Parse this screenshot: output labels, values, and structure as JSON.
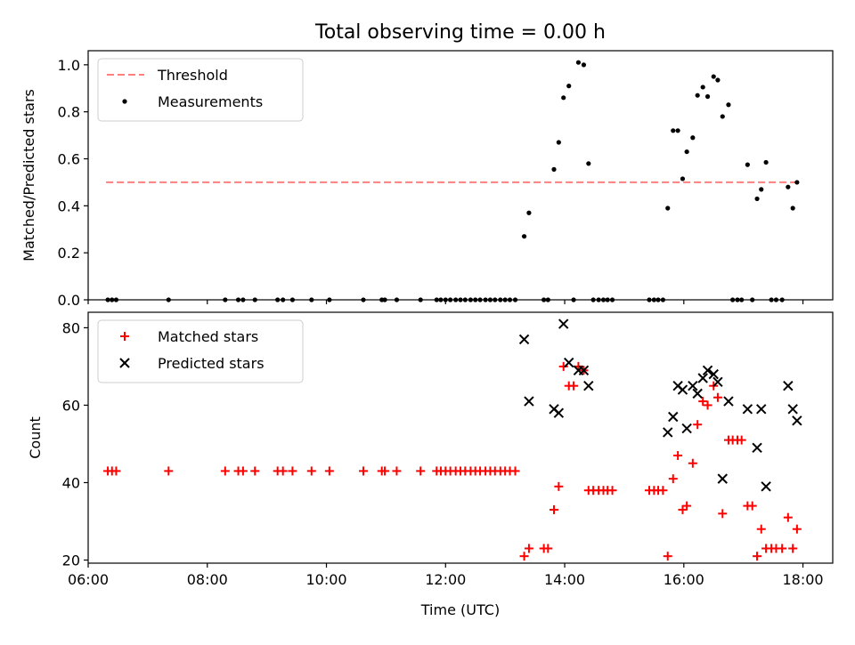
{
  "title": "Total observing time = 0.00 h",
  "chart_data": [
    {
      "type": "scatter",
      "ylabel": "Matched/Predicted stars",
      "xlabel": "",
      "xlim": [
        6.0,
        18.5
      ],
      "ylim": [
        0.0,
        1.06
      ],
      "yticks": [
        0.0,
        0.2,
        0.4,
        0.6,
        0.8,
        1.0
      ],
      "ytick_labels": [
        "0.0",
        "0.2",
        "0.4",
        "0.6",
        "0.8",
        "1.0"
      ],
      "xticks": [
        6,
        8,
        10,
        12,
        14,
        16,
        18
      ],
      "threshold": {
        "name": "Threshold",
        "y": 0.5,
        "x_range": [
          6.3,
          17.9
        ],
        "color": "#ff7f7f"
      },
      "legend_position": "upper left",
      "series": [
        {
          "name": "Measurements",
          "marker": "dot",
          "color": "#000000",
          "points": [
            [
              6.33,
              0
            ],
            [
              6.4,
              0
            ],
            [
              6.47,
              0
            ],
            [
              7.35,
              0
            ],
            [
              8.3,
              0
            ],
            [
              8.52,
              0
            ],
            [
              8.6,
              0
            ],
            [
              8.8,
              0
            ],
            [
              9.18,
              0
            ],
            [
              9.27,
              0
            ],
            [
              9.43,
              0
            ],
            [
              9.75,
              0
            ],
            [
              10.05,
              0
            ],
            [
              10.62,
              0
            ],
            [
              10.93,
              0
            ],
            [
              10.98,
              0
            ],
            [
              11.18,
              0
            ],
            [
              11.58,
              0
            ],
            [
              11.85,
              0
            ],
            [
              11.92,
              0
            ],
            [
              12.0,
              0
            ],
            [
              12.08,
              0
            ],
            [
              12.17,
              0
            ],
            [
              12.25,
              0
            ],
            [
              12.33,
              0
            ],
            [
              12.42,
              0
            ],
            [
              12.5,
              0
            ],
            [
              12.58,
              0
            ],
            [
              12.67,
              0
            ],
            [
              12.75,
              0
            ],
            [
              12.83,
              0
            ],
            [
              12.92,
              0
            ],
            [
              13.0,
              0
            ],
            [
              13.08,
              0
            ],
            [
              13.17,
              0
            ],
            [
              13.32,
              0.27
            ],
            [
              13.4,
              0.37
            ],
            [
              13.65,
              0
            ],
            [
              13.72,
              0
            ],
            [
              13.82,
              0.555
            ],
            [
              13.9,
              0.67
            ],
            [
              13.98,
              0.86
            ],
            [
              14.07,
              0.91
            ],
            [
              14.15,
              0
            ],
            [
              14.23,
              1.01
            ],
            [
              14.32,
              1.0
            ],
            [
              14.4,
              0.58
            ],
            [
              14.48,
              0
            ],
            [
              14.57,
              0
            ],
            [
              14.65,
              0
            ],
            [
              14.72,
              0
            ],
            [
              14.8,
              0
            ],
            [
              15.42,
              0
            ],
            [
              15.5,
              0
            ],
            [
              15.57,
              0
            ],
            [
              15.65,
              0
            ],
            [
              15.73,
              0.39
            ],
            [
              15.82,
              0.72
            ],
            [
              15.9,
              0.72
            ],
            [
              15.98,
              0.515
            ],
            [
              16.05,
              0.63
            ],
            [
              16.15,
              0.69
            ],
            [
              16.23,
              0.87
            ],
            [
              16.32,
              0.905
            ],
            [
              16.4,
              0.865
            ],
            [
              16.5,
              0.95
            ],
            [
              16.57,
              0.935
            ],
            [
              16.65,
              0.78
            ],
            [
              16.75,
              0.83
            ],
            [
              16.82,
              0
            ],
            [
              16.9,
              0
            ],
            [
              16.97,
              0
            ],
            [
              17.07,
              0.575
            ],
            [
              17.15,
              0
            ],
            [
              17.23,
              0.43
            ],
            [
              17.3,
              0.47
            ],
            [
              17.38,
              0.585
            ],
            [
              17.47,
              0
            ],
            [
              17.55,
              0
            ],
            [
              17.65,
              0
            ],
            [
              17.75,
              0.48
            ],
            [
              17.83,
              0.39
            ],
            [
              17.9,
              0.5
            ]
          ]
        }
      ]
    },
    {
      "type": "scatter",
      "xlabel": "Time (UTC)",
      "ylabel": "Count",
      "xlim": [
        6.0,
        18.5
      ],
      "ylim": [
        19.2,
        84.0
      ],
      "yticks": [
        20,
        40,
        60,
        80
      ],
      "ytick_labels": [
        "20",
        "40",
        "60",
        "80"
      ],
      "xticks": [
        6,
        8,
        10,
        12,
        14,
        16,
        18
      ],
      "xtick_labels": [
        "06:00",
        "08:00",
        "10:00",
        "12:00",
        "14:00",
        "16:00",
        "18:00"
      ],
      "legend_position": "upper left",
      "series": [
        {
          "name": "Matched stars",
          "marker": "plus",
          "color": "#ff0000",
          "points": [
            [
              6.33,
              43
            ],
            [
              6.4,
              43
            ],
            [
              6.47,
              43
            ],
            [
              7.35,
              43
            ],
            [
              8.3,
              43
            ],
            [
              8.52,
              43
            ],
            [
              8.6,
              43
            ],
            [
              8.8,
              43
            ],
            [
              9.18,
              43
            ],
            [
              9.27,
              43
            ],
            [
              9.43,
              43
            ],
            [
              9.75,
              43
            ],
            [
              10.05,
              43
            ],
            [
              10.62,
              43
            ],
            [
              10.93,
              43
            ],
            [
              10.98,
              43
            ],
            [
              11.18,
              43
            ],
            [
              11.58,
              43
            ],
            [
              11.85,
              43
            ],
            [
              11.92,
              43
            ],
            [
              12.0,
              43
            ],
            [
              12.08,
              43
            ],
            [
              12.17,
              43
            ],
            [
              12.25,
              43
            ],
            [
              12.33,
              43
            ],
            [
              12.42,
              43
            ],
            [
              12.5,
              43
            ],
            [
              12.58,
              43
            ],
            [
              12.67,
              43
            ],
            [
              12.75,
              43
            ],
            [
              12.83,
              43
            ],
            [
              12.92,
              43
            ],
            [
              13.0,
              43
            ],
            [
              13.08,
              43
            ],
            [
              13.17,
              43
            ],
            [
              13.32,
              21
            ],
            [
              13.4,
              23
            ],
            [
              13.65,
              23
            ],
            [
              13.72,
              23
            ],
            [
              13.82,
              33
            ],
            [
              13.9,
              39
            ],
            [
              13.98,
              70
            ],
            [
              14.07,
              65
            ],
            [
              14.15,
              65
            ],
            [
              14.23,
              70
            ],
            [
              14.32,
              69
            ],
            [
              14.4,
              38
            ],
            [
              14.48,
              38
            ],
            [
              14.57,
              38
            ],
            [
              14.65,
              38
            ],
            [
              14.72,
              38
            ],
            [
              14.8,
              38
            ],
            [
              15.42,
              38
            ],
            [
              15.5,
              38
            ],
            [
              15.57,
              38
            ],
            [
              15.65,
              38
            ],
            [
              15.73,
              21
            ],
            [
              15.82,
              41
            ],
            [
              15.9,
              47
            ],
            [
              15.98,
              33
            ],
            [
              16.05,
              34
            ],
            [
              16.15,
              45
            ],
            [
              16.23,
              55
            ],
            [
              16.32,
              61
            ],
            [
              16.4,
              60
            ],
            [
              16.5,
              65
            ],
            [
              16.57,
              62
            ],
            [
              16.65,
              32
            ],
            [
              16.75,
              51
            ],
            [
              16.82,
              51
            ],
            [
              16.9,
              51
            ],
            [
              16.97,
              51
            ],
            [
              17.07,
              34
            ],
            [
              17.15,
              34
            ],
            [
              17.23,
              21
            ],
            [
              17.3,
              28
            ],
            [
              17.38,
              23
            ],
            [
              17.47,
              23
            ],
            [
              17.55,
              23
            ],
            [
              17.65,
              23
            ],
            [
              17.75,
              31
            ],
            [
              17.83,
              23
            ],
            [
              17.9,
              28
            ]
          ]
        },
        {
          "name": "Predicted stars",
          "marker": "x",
          "color": "#000000",
          "points": [
            [
              13.32,
              77
            ],
            [
              13.4,
              61
            ],
            [
              13.82,
              59
            ],
            [
              13.9,
              58
            ],
            [
              13.98,
              81
            ],
            [
              14.07,
              71
            ],
            [
              14.23,
              69
            ],
            [
              14.32,
              69
            ],
            [
              14.4,
              65
            ],
            [
              15.73,
              53
            ],
            [
              15.82,
              57
            ],
            [
              15.9,
              65
            ],
            [
              15.98,
              64
            ],
            [
              16.05,
              54
            ],
            [
              16.15,
              65
            ],
            [
              16.23,
              63
            ],
            [
              16.32,
              67
            ],
            [
              16.4,
              69
            ],
            [
              16.5,
              68
            ],
            [
              16.57,
              66
            ],
            [
              16.65,
              41
            ],
            [
              16.75,
              61
            ],
            [
              17.07,
              59
            ],
            [
              17.23,
              49
            ],
            [
              17.3,
              59
            ],
            [
              17.38,
              39
            ],
            [
              17.75,
              65
            ],
            [
              17.83,
              59
            ],
            [
              17.9,
              56
            ]
          ]
        }
      ]
    }
  ]
}
